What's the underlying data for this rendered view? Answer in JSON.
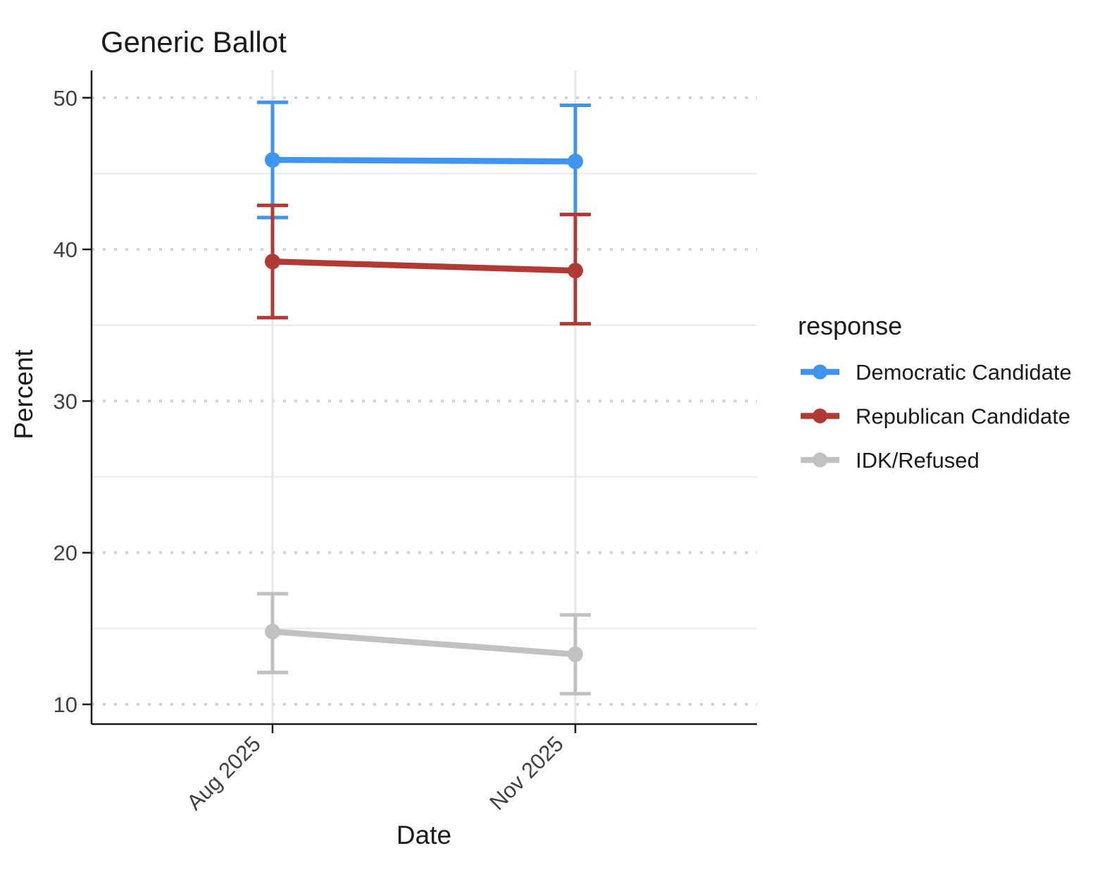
{
  "chart_data": {
    "type": "line",
    "title": "Generic Ballot",
    "xlabel": "Date",
    "ylabel": "Percent",
    "legend_title": "response",
    "legend_position": "right",
    "grid": "horizontal major dotted, horizontal minor solid, vertical solid at categories",
    "x_categories": [
      "Aug 2025",
      "Nov 2025"
    ],
    "y_ticks": [
      10,
      20,
      30,
      40,
      50
    ],
    "y_minor_ticks": [
      15,
      25,
      35,
      45
    ],
    "ylim": [
      8.7,
      51.8
    ],
    "series": [
      {
        "name": "Democratic Candidate",
        "color": "#3E94EE",
        "values": [
          45.9,
          45.8
        ],
        "ci_lower": [
          42.1,
          42.3
        ],
        "ci_upper": [
          49.7,
          49.5
        ]
      },
      {
        "name": "Republican Candidate",
        "color": "#B13A35",
        "values": [
          39.2,
          38.6
        ],
        "ci_lower": [
          35.5,
          35.1
        ],
        "ci_upper": [
          42.9,
          42.3
        ]
      },
      {
        "name": "IDK/Refused",
        "color": "#C1C1C1",
        "values": [
          14.8,
          13.3
        ],
        "ci_lower": [
          12.1,
          10.7
        ],
        "ci_upper": [
          17.3,
          15.9
        ]
      }
    ]
  },
  "colors": {
    "axis": "#1a1a1a",
    "tick_label": "#404040",
    "text": "#1a1a1a",
    "grid_major": "#D2D2D2",
    "grid_minor": "#ECECEC",
    "grid_vertical": "#E6E6E6",
    "background": "#FFFFFF"
  }
}
